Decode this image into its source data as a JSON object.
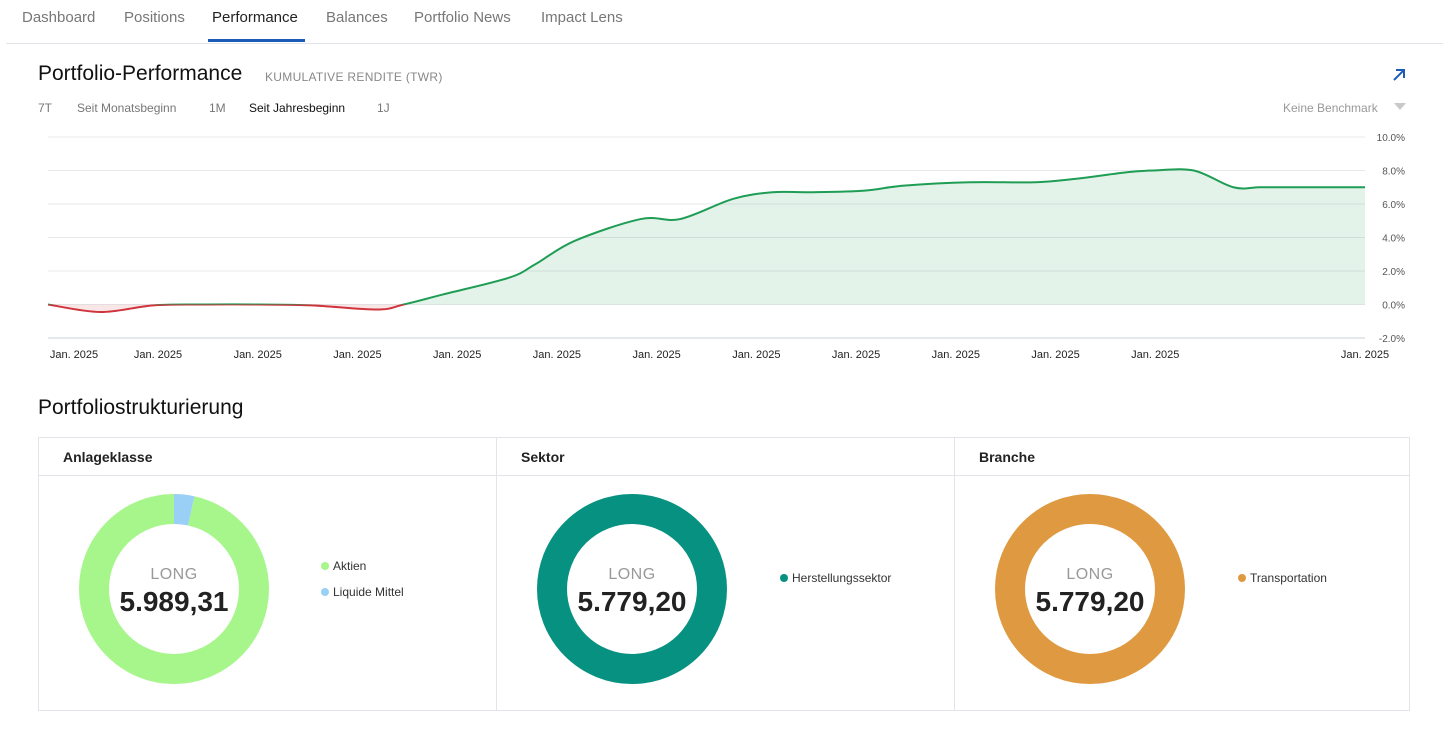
{
  "tabs": [
    {
      "label": "Dashboard"
    },
    {
      "label": "Positions"
    },
    {
      "label": "Performance"
    },
    {
      "label": "Balances"
    },
    {
      "label": "Portfolio News"
    },
    {
      "label": "Impact Lens"
    }
  ],
  "performance": {
    "title": "Portfolio-Performance",
    "subtitle": "KUMULATIVE RENDITE (TWR)",
    "ranges": [
      {
        "label": "7T"
      },
      {
        "label": "Seit Monatsbeginn"
      },
      {
        "label": "1M"
      },
      {
        "label": "Seit Jahresbeginn"
      },
      {
        "label": "1J"
      }
    ],
    "active_range": "Seit Jahresbeginn",
    "benchmark_label": "Keine Benchmark"
  },
  "chart_data": {
    "type": "area",
    "title": "",
    "xlabel": "",
    "ylabel": "",
    "y_unit": "%",
    "ylim": [
      -2.0,
      10.0
    ],
    "y_ticks": [
      "10.0%",
      "8.0%",
      "6.0%",
      "4.0%",
      "2.0%",
      "0.0%",
      "-2.0%"
    ],
    "x_tick_labels": [
      "Jan. 2025",
      "Jan. 2025",
      "Jan. 2025",
      "Jan. 2025",
      "Jan. 2025",
      "Jan. 2025",
      "Jan. 2025",
      "Jan. 2025",
      "Jan. 2025",
      "Jan. 2025",
      "Jan. 2025",
      "Jan. 2025",
      "Jan. 2025"
    ],
    "grid": true,
    "positive_color": "#1f9d55",
    "negative_color": "#d0343d",
    "x": [
      0,
      0.04,
      0.08,
      0.12,
      0.16,
      0.2,
      0.25,
      0.27,
      0.3,
      0.35,
      0.37,
      0.4,
      0.45,
      0.48,
      0.52,
      0.55,
      0.58,
      0.62,
      0.65,
      0.7,
      0.75,
      0.78,
      0.82,
      0.84,
      0.87,
      0.9,
      0.92,
      0.94,
      0.96,
      1.0
    ],
    "values": [
      0.0,
      -0.45,
      -0.05,
      0.0,
      0.0,
      -0.05,
      -0.3,
      0.0,
      0.6,
      1.6,
      2.4,
      3.8,
      5.1,
      5.1,
      6.3,
      6.7,
      6.7,
      6.8,
      7.1,
      7.3,
      7.3,
      7.5,
      7.9,
      8.0,
      8.0,
      7.0,
      7.0,
      7.0,
      7.0,
      7.0
    ]
  },
  "structure": {
    "title": "Portfoliostrukturierung",
    "panels": [
      {
        "header": "Anlageklasse",
        "center_label": "LONG",
        "center_value": "5.989,31",
        "slices": [
          {
            "name": "Aktien",
            "color": "#a6f68c",
            "fraction": 0.965
          },
          {
            "name": "Liquide Mittel",
            "color": "#9ad0f5",
            "fraction": 0.035
          }
        ]
      },
      {
        "header": "Sektor",
        "center_label": "LONG",
        "center_value": "5.779,20",
        "slices": [
          {
            "name": "Herstellungssektor",
            "color": "#069180",
            "fraction": 1.0
          }
        ]
      },
      {
        "header": "Branche",
        "center_label": "LONG",
        "center_value": "5.779,20",
        "slices": [
          {
            "name": "Transportation",
            "color": "#df9a41",
            "fraction": 1.0
          }
        ]
      }
    ]
  }
}
